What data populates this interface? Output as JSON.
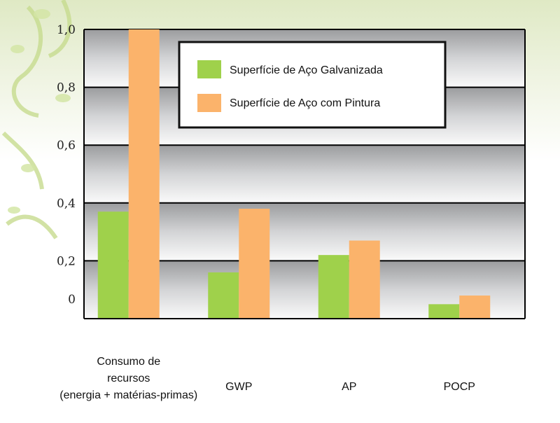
{
  "chart_data": {
    "type": "bar",
    "categories": [
      [
        "Consumo de",
        "recursos",
        "(energia + matérias-primas)"
      ],
      [
        "GWP"
      ],
      [
        "AP"
      ],
      [
        "POCP"
      ]
    ],
    "series": [
      {
        "name": "Superfície de Aço Galvanizada",
        "color": "#9fd14b",
        "values": [
          0.37,
          0.16,
          0.22,
          0.05
        ]
      },
      {
        "name": "Superfície de Aço com Pintura",
        "color": "#fbb36b",
        "values": [
          1.0,
          0.38,
          0.27,
          0.08
        ]
      }
    ],
    "yticks": [
      "1,0",
      "0,8",
      "0,6",
      "0,4",
      "0,2",
      "0"
    ],
    "ylim": [
      0,
      1.0
    ],
    "grid": true,
    "legend_position": "top-right",
    "title": "",
    "xlabel": "",
    "ylabel": ""
  }
}
